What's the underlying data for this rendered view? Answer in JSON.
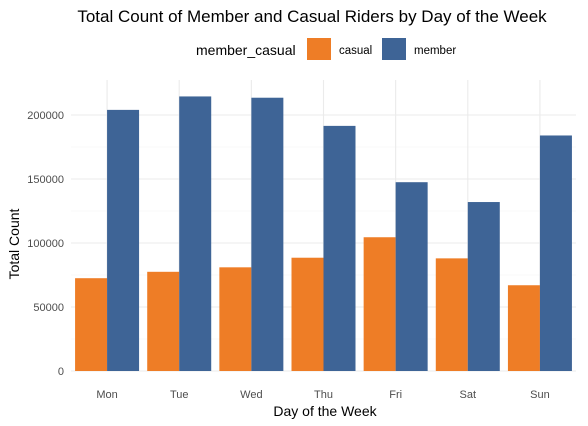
{
  "chart_data": {
    "type": "bar",
    "title": "Total Count of Member and Casual Riders by Day of the Week",
    "xlabel": "Day of the Week",
    "ylabel": "Total Count",
    "categories": [
      "Mon",
      "Tue",
      "Wed",
      "Thu",
      "Fri",
      "Sat",
      "Sun"
    ],
    "series": [
      {
        "name": "casual",
        "color": "#ee7d26",
        "values": [
          72500,
          77500,
          81000,
          88500,
          104500,
          88000,
          67000
        ]
      },
      {
        "name": "member",
        "color": "#3e6496",
        "values": [
          204000,
          214500,
          213500,
          191500,
          147500,
          132000,
          184000
        ]
      }
    ],
    "ylim": [
      0,
      225000
    ],
    "yticks": [
      0,
      50000,
      100000,
      150000,
      200000
    ],
    "ytick_labels": [
      "0",
      "50000",
      "100000",
      "150000",
      "200000"
    ],
    "legend": {
      "title": "member_casual",
      "position": "top"
    },
    "grid": true
  }
}
